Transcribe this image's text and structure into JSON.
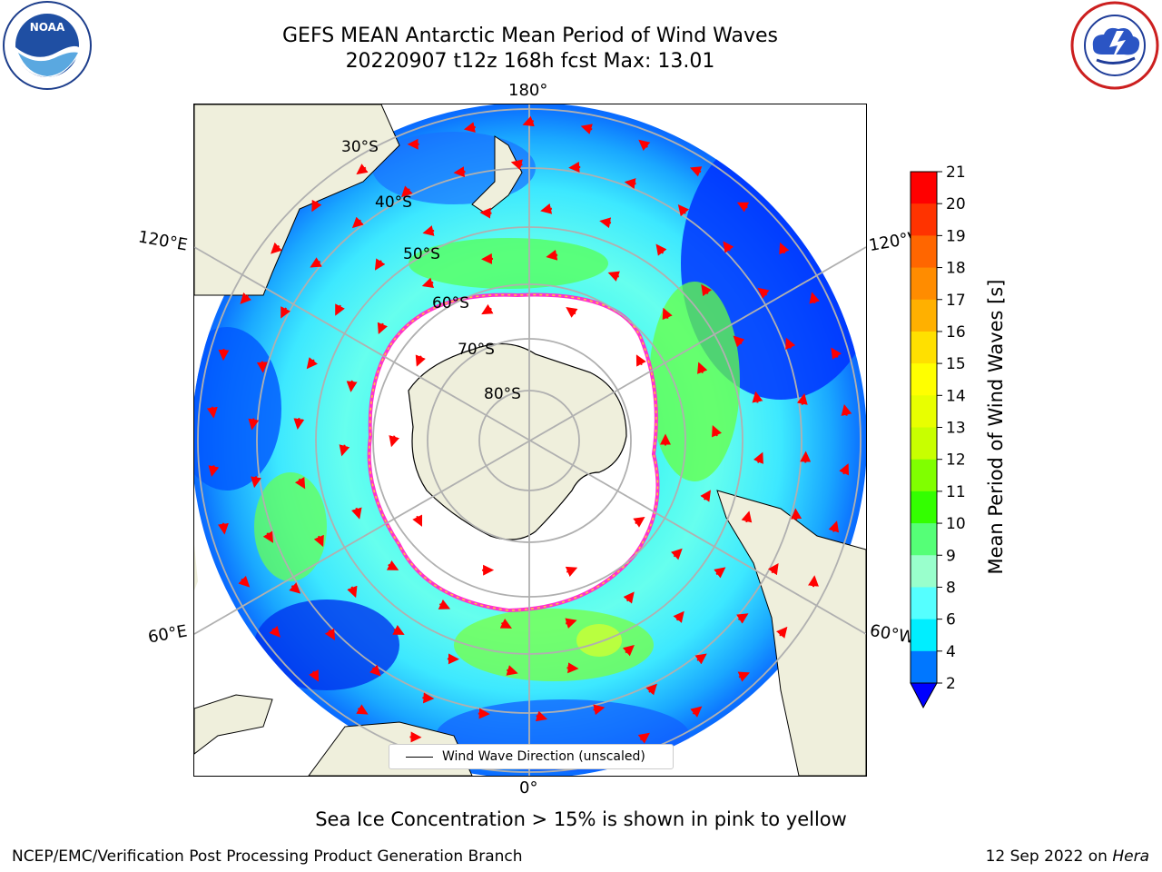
{
  "header": {
    "title_line1": "GEFS MEAN Antarctic Mean Period of Wind Waves",
    "title_line2": "20220907 t12z 168h fcst   Max: 13.01"
  },
  "logos": {
    "left": "NOAA",
    "left_ring_text": "NATIONAL OCEANIC AND ATMOSPHERIC ADMINISTRATION · U.S. DEPARTMENT OF COMMERCE",
    "right_ring_text": "NATIONAL WEATHER SERVICE"
  },
  "map": {
    "lon_labels": {
      "top": "180°",
      "bottom": "0°",
      "left_upper": "120°E",
      "left_lower": "60°E",
      "right_upper": "120°W",
      "right_lower": "60°W"
    },
    "lat_labels": [
      "30°S",
      "40°S",
      "50°S",
      "60°S",
      "70°S",
      "80°S"
    ],
    "legend_text": "Wind Wave Direction (unscaled)"
  },
  "colorbar": {
    "label": "Mean Period of Wind Waves [s]",
    "ticks": [
      "21",
      "20",
      "19",
      "18",
      "17",
      "16",
      "15",
      "14",
      "13",
      "12",
      "11",
      "10",
      "9",
      "8",
      "6",
      "4",
      "2"
    ],
    "colors": [
      "#ff0000",
      "#ff3300",
      "#ff6600",
      "#ff8c00",
      "#ffb000",
      "#ffe000",
      "#ffff00",
      "#e8ff00",
      "#c8ff00",
      "#80ff00",
      "#33ff00",
      "#55ff77",
      "#99ffcc",
      "#55ffff",
      "#00eeff",
      "#0077ff"
    ],
    "under_color": "#0000ff"
  },
  "note": "Sea Ice Concentration > 15% is shown in pink to yellow",
  "footer": {
    "left": "NCEP/EMC/Verification Post Processing Product Generation Branch",
    "right_date": "12 Sep 2022 on ",
    "right_machine": "Hera"
  }
}
